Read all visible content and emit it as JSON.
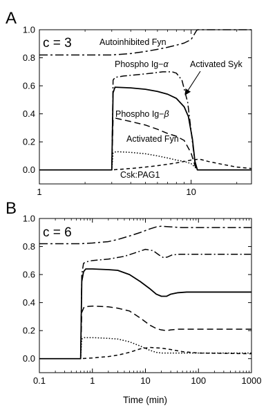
{
  "chart_data": [
    {
      "panel_label": "A",
      "type": "line",
      "annotation": "c = 3",
      "xscale": "log",
      "xlim": [
        1,
        25
      ],
      "ylim": [
        -0.1,
        1.0
      ],
      "xticks": [
        {
          "value": 1,
          "label": "1"
        },
        {
          "value": 10,
          "label": "10"
        }
      ],
      "yticks": [
        {
          "value": 0,
          "label": "0.0"
        },
        {
          "value": 0.2,
          "label": "0.2"
        },
        {
          "value": 0.4,
          "label": "0.4"
        },
        {
          "value": 0.6,
          "label": "0.6"
        },
        {
          "value": 0.8,
          "label": "0.8"
        },
        {
          "value": 1.0,
          "label": "1.0"
        }
      ],
      "xlabel": "",
      "ylabel": "",
      "series": [
        {
          "name": "Autoinhibited Fyn",
          "dash": "dashdot-long",
          "x": [
            1,
            2,
            3,
            4,
            5,
            6,
            7,
            8,
            9,
            10,
            10.4,
            10.8,
            11,
            12,
            15,
            20,
            25
          ],
          "y": [
            0.82,
            0.82,
            0.82,
            0.83,
            0.845,
            0.86,
            0.875,
            0.89,
            0.905,
            0.93,
            0.96,
            0.99,
            1.0,
            1.0,
            1.0,
            1.0,
            1.0
          ]
        },
        {
          "name": "Phospho Ig-α",
          "dash": "dashdot",
          "x": [
            1,
            3.0,
            3.06,
            3.15,
            3.6,
            4.5,
            5.5,
            6.5,
            7.5,
            8.0,
            8.7,
            9.5,
            10.2,
            10.6,
            11,
            12,
            25
          ],
          "y": [
            0.0,
            0.0,
            0.64,
            0.66,
            0.67,
            0.68,
            0.69,
            0.7,
            0.7,
            0.69,
            0.64,
            0.48,
            0.2,
            0.05,
            0.0,
            0.0,
            0.0
          ]
        },
        {
          "name": "Activated Syk",
          "dash": "solid",
          "x": [
            1,
            3.0,
            3.06,
            3.15,
            4,
            5,
            6,
            7,
            8,
            9,
            9.6,
            10.2,
            10.6,
            11,
            12,
            25
          ],
          "y": [
            0.0,
            0.0,
            0.55,
            0.59,
            0.585,
            0.575,
            0.56,
            0.54,
            0.51,
            0.45,
            0.38,
            0.22,
            0.06,
            0.0,
            0.0,
            0.0
          ]
        },
        {
          "name": "Phospho Ig-β",
          "dash": "dashed",
          "x": [
            1,
            3.0,
            3.06,
            3.15,
            4,
            5,
            6,
            7,
            8,
            9,
            10,
            10.6,
            11,
            12,
            25
          ],
          "y": [
            0.0,
            0.0,
            0.36,
            0.37,
            0.345,
            0.32,
            0.29,
            0.26,
            0.24,
            0.21,
            0.12,
            0.03,
            0.0,
            0.0,
            0.0
          ]
        },
        {
          "name": "Activated Fyn",
          "dash": "dotted",
          "x": [
            1,
            3.0,
            3.06,
            3.2,
            4,
            5,
            6,
            7,
            8,
            9,
            10,
            10.6,
            11,
            12,
            25
          ],
          "y": [
            0.0,
            0.0,
            0.12,
            0.13,
            0.125,
            0.115,
            0.1,
            0.085,
            0.07,
            0.06,
            0.045,
            0.02,
            0.0,
            0.0,
            0.0
          ]
        },
        {
          "name": "Csk:PAG1",
          "dash": "dashed-short",
          "x": [
            1,
            3.0,
            4,
            5,
            6,
            7,
            8,
            9,
            10,
            11,
            11.5,
            13,
            16,
            20,
            25
          ],
          "y": [
            0.0,
            0.0,
            0.01,
            0.02,
            0.03,
            0.04,
            0.05,
            0.06,
            0.07,
            0.075,
            0.075,
            0.06,
            0.04,
            0.02,
            0.01
          ]
        }
      ]
    },
    {
      "panel_label": "B",
      "type": "line",
      "annotation": "c = 6",
      "xscale": "log",
      "xlim": [
        0.1,
        1000
      ],
      "ylim": [
        -0.1,
        1.0
      ],
      "xticks": [
        {
          "value": 0.1,
          "label": "0.1"
        },
        {
          "value": 1,
          "label": "1"
        },
        {
          "value": 10,
          "label": "10"
        },
        {
          "value": 100,
          "label": "100"
        },
        {
          "value": 1000,
          "label": "1000"
        }
      ],
      "yticks": [
        {
          "value": 0,
          "label": "0.0"
        },
        {
          "value": 0.2,
          "label": "0.2"
        },
        {
          "value": 0.4,
          "label": "0.4"
        },
        {
          "value": 0.6,
          "label": "0.6"
        },
        {
          "value": 0.8,
          "label": "0.8"
        },
        {
          "value": 1.0,
          "label": "1.0"
        }
      ],
      "xlabel": "Time (min)",
      "ylabel": "",
      "series": [
        {
          "dash": "dashdot-long",
          "x": [
            0.1,
            0.6,
            1,
            2,
            3,
            5,
            8,
            12,
            16,
            20,
            30,
            50,
            100,
            1000
          ],
          "y": [
            0.82,
            0.82,
            0.825,
            0.835,
            0.85,
            0.875,
            0.9,
            0.925,
            0.94,
            0.945,
            0.94,
            0.935,
            0.935,
            0.935
          ]
        },
        {
          "dash": "dashdot",
          "x": [
            0.1,
            0.6,
            0.63,
            0.68,
            0.75,
            1,
            2,
            4,
            7,
            10,
            14,
            18,
            22,
            26,
            32,
            45,
            70,
            1000
          ],
          "y": [
            0.0,
            0.0,
            0.6,
            0.68,
            0.69,
            0.7,
            0.71,
            0.73,
            0.76,
            0.78,
            0.77,
            0.74,
            0.72,
            0.725,
            0.74,
            0.745,
            0.745,
            0.745
          ]
        },
        {
          "dash": "solid",
          "x": [
            0.1,
            0.6,
            0.63,
            0.68,
            0.75,
            1,
            2,
            3,
            5,
            8,
            12,
            16,
            20,
            25,
            30,
            40,
            60,
            100,
            1000
          ],
          "y": [
            0.0,
            0.0,
            0.55,
            0.62,
            0.64,
            0.64,
            0.635,
            0.63,
            0.6,
            0.55,
            0.5,
            0.46,
            0.445,
            0.445,
            0.46,
            0.47,
            0.475,
            0.475,
            0.475
          ]
        },
        {
          "dash": "dashed",
          "x": [
            0.1,
            0.6,
            0.63,
            0.7,
            1,
            2,
            3,
            5,
            8,
            12,
            16,
            20,
            25,
            30,
            40,
            60,
            100,
            1000
          ],
          "y": [
            0.0,
            0.0,
            0.33,
            0.37,
            0.375,
            0.37,
            0.36,
            0.34,
            0.29,
            0.24,
            0.215,
            0.205,
            0.2,
            0.205,
            0.21,
            0.21,
            0.21,
            0.21
          ]
        },
        {
          "dash": "dotted",
          "x": [
            0.1,
            0.6,
            0.63,
            0.7,
            1,
            2,
            3,
            5,
            8,
            12,
            16,
            20,
            25,
            40,
            100,
            1000
          ],
          "y": [
            0.0,
            0.0,
            0.14,
            0.15,
            0.15,
            0.145,
            0.14,
            0.12,
            0.09,
            0.06,
            0.045,
            0.04,
            0.04,
            0.04,
            0.04,
            0.04
          ]
        },
        {
          "dash": "dashed-short",
          "x": [
            0.1,
            0.6,
            1,
            2,
            3,
            5,
            8,
            12,
            20,
            30,
            50,
            100,
            1000
          ],
          "y": [
            0.0,
            0.0,
            0.005,
            0.015,
            0.025,
            0.045,
            0.07,
            0.08,
            0.075,
            0.065,
            0.05,
            0.04,
            0.035
          ]
        }
      ]
    }
  ],
  "annotations_a": {
    "autoinhibited_fyn": "Autoinhibited Fyn",
    "phospho_ig_alpha_prefix": "Phospho Ig−",
    "alpha": "α",
    "activated_syk": "Activated Syk",
    "phospho_ig_beta_prefix": "Phospho Ig−",
    "beta": "β",
    "activated_fyn": "Activated Fyn",
    "csk_pag1": "Csk:PAG1"
  }
}
